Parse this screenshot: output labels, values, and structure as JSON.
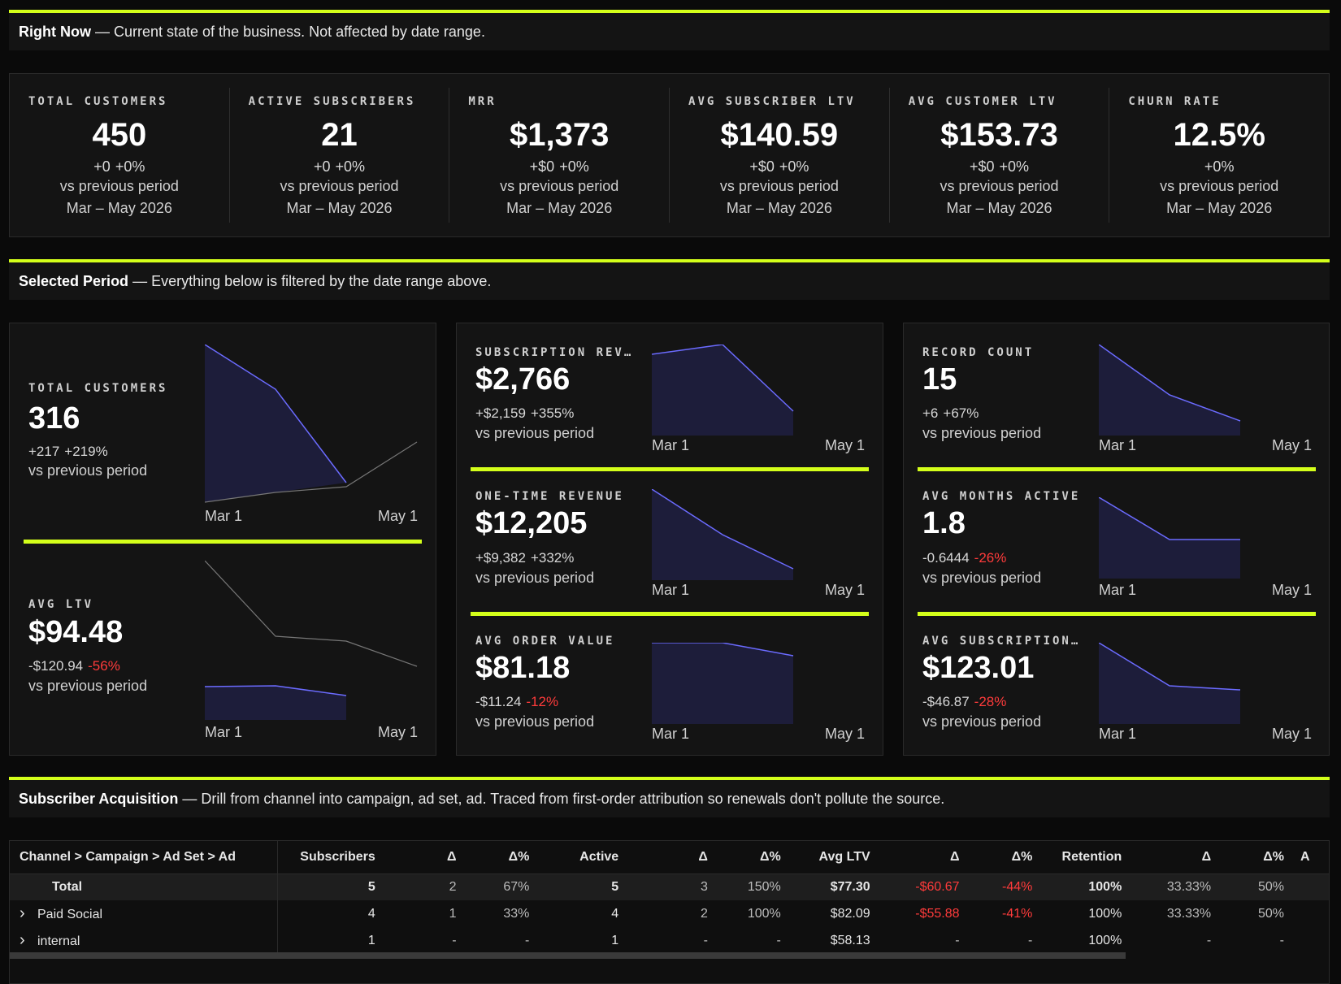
{
  "right_now": {
    "title": "Right Now",
    "desc": "— Current state of the business. Not affected by date range.",
    "kpis": [
      {
        "label": "TOTAL CUSTOMERS",
        "value": "450",
        "delta_abs": "+0",
        "delta_pct": "+0%",
        "vs": "vs previous period",
        "period": "Mar – May 2026"
      },
      {
        "label": "ACTIVE SUBSCRIBERS",
        "value": "21",
        "delta_abs": "+0",
        "delta_pct": "+0%",
        "vs": "vs previous period",
        "period": "Mar – May 2026"
      },
      {
        "label": "MRR",
        "value": "$1,373",
        "delta_abs": "+$0",
        "delta_pct": "+0%",
        "vs": "vs previous period",
        "period": "Mar – May 2026"
      },
      {
        "label": "AVG SUBSCRIBER LTV",
        "value": "$140.59",
        "delta_abs": "+$0",
        "delta_pct": "+0%",
        "vs": "vs previous period",
        "period": "Mar – May 2026"
      },
      {
        "label": "AVG CUSTOMER LTV",
        "value": "$153.73",
        "delta_abs": "+$0",
        "delta_pct": "+0%",
        "vs": "vs previous period",
        "period": "Mar – May 2026"
      },
      {
        "label": "CHURN RATE",
        "value": "12.5%",
        "delta_abs": "",
        "delta_pct": "+0%",
        "vs": "vs previous period",
        "period": "Mar – May 2026"
      }
    ]
  },
  "selected_period": {
    "title": "Selected Period",
    "desc": "— Everything below is filtered by the date range above.",
    "axis_start": "Mar 1",
    "axis_end": "May 1",
    "vs": "vs previous period",
    "metrics": {
      "total_customers": {
        "label": "TOTAL CUSTOMERS",
        "value": "316",
        "delta_abs": "+217",
        "delta_pct": "+219%"
      },
      "avg_ltv": {
        "label": "AVG LTV",
        "value": "$94.48",
        "delta_abs": "-$120.94",
        "delta_pct": "-56%"
      },
      "subscription_revenue": {
        "label": "SUBSCRIPTION REV…",
        "value": "$2,766",
        "delta_abs": "+$2,159",
        "delta_pct": "+355%"
      },
      "one_time_revenue": {
        "label": "ONE-TIME REVENUE",
        "value": "$12,205",
        "delta_abs": "+$9,382",
        "delta_pct": "+332%"
      },
      "avg_order_value": {
        "label": "AVG ORDER VALUE",
        "value": "$81.18",
        "delta_abs": "-$11.24",
        "delta_pct": "-12%"
      },
      "record_count": {
        "label": "RECORD COUNT",
        "value": "15",
        "delta_abs": "+6",
        "delta_pct": "+67%"
      },
      "avg_months_active": {
        "label": "AVG MONTHS ACTIVE",
        "value": "1.8",
        "delta_abs": "-0.6444",
        "delta_pct": "-26%"
      },
      "avg_subscription": {
        "label": "AVG SUBSCRIPTION…",
        "value": "$123.01",
        "delta_abs": "-$46.87",
        "delta_pct": "-28%"
      }
    }
  },
  "acquisition": {
    "title": "Subscriber Acquisition",
    "desc": "— Drill from channel into campaign, ad set, ad. Traced from first-order attribution so renewals don't pollute the source.",
    "headers": [
      "Channel > Campaign > Ad Set > Ad",
      "Subscribers",
      "Δ",
      "Δ%",
      "Active",
      "Δ",
      "Δ%",
      "Avg LTV",
      "Δ",
      "Δ%",
      "Retention",
      "Δ",
      "Δ%",
      "A"
    ],
    "rows": [
      {
        "name": "Total",
        "cells": [
          "5",
          "2",
          "67%",
          "5",
          "3",
          "150%",
          "$77.30",
          "-$60.67",
          "-44%",
          "100%",
          "33.33%",
          "50%"
        ]
      },
      {
        "name": "Paid Social",
        "cells": [
          "4",
          "1",
          "33%",
          "4",
          "2",
          "100%",
          "$82.09",
          "-$55.88",
          "-41%",
          "100%",
          "33.33%",
          "50%"
        ]
      },
      {
        "name": "internal",
        "cells": [
          "1",
          "-",
          "-",
          "1",
          "-",
          "-",
          "$58.13",
          "-",
          "-",
          "100%",
          "-",
          "-"
        ]
      }
    ],
    "expand_glyph": "›"
  },
  "colors": {
    "accent": "#d4ff1a",
    "line": "#6b6bff",
    "negative": "#ff3b3b",
    "panel": "#141414"
  }
}
